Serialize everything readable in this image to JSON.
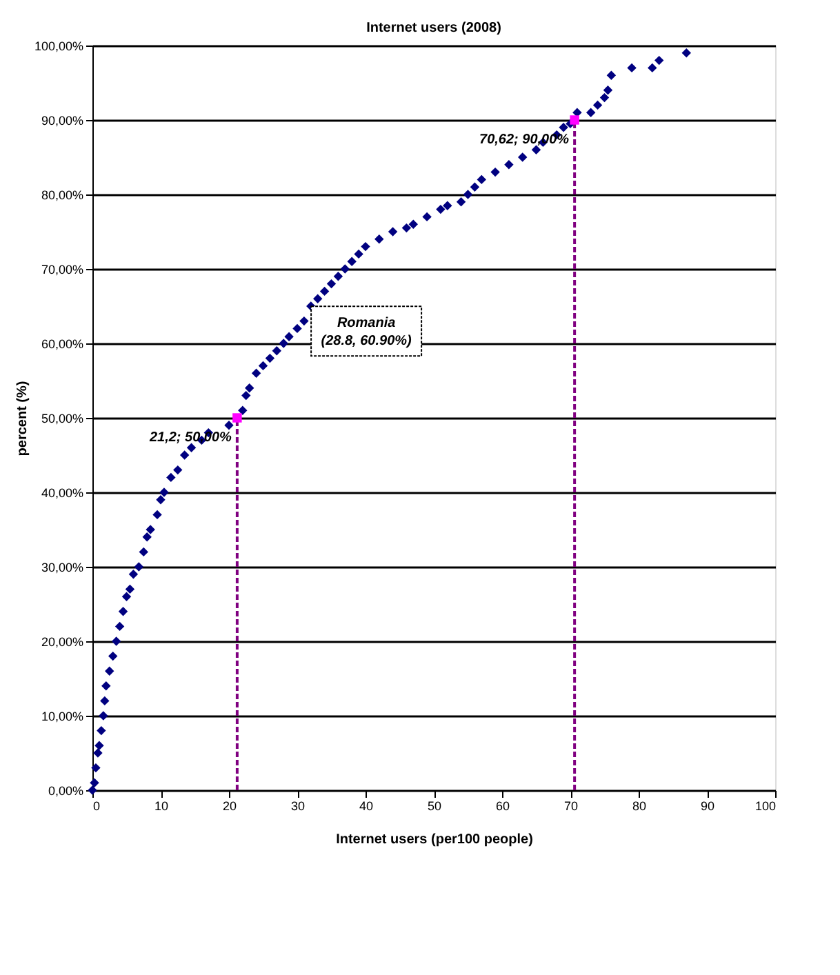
{
  "chart_data": {
    "type": "scatter",
    "title": "Internet users (2008)",
    "xlabel": "Internet users (per100 people)",
    "ylabel": "percent (%)",
    "xlim": [
      0,
      100
    ],
    "xticks": [
      0,
      10,
      20,
      30,
      40,
      50,
      60,
      70,
      80,
      90,
      100
    ],
    "ylim": [
      0,
      100
    ],
    "yticks": [
      {
        "value": 0,
        "label": "0,00%"
      },
      {
        "value": 10,
        "label": "10,00%"
      },
      {
        "value": 20,
        "label": "20,00%"
      },
      {
        "value": 30,
        "label": "30,00%"
      },
      {
        "value": 40,
        "label": "40,00%"
      },
      {
        "value": 50,
        "label": "50,00%"
      },
      {
        "value": 60,
        "label": "60,00%"
      },
      {
        "value": 70,
        "label": "70,00%"
      },
      {
        "value": 80,
        "label": "80,00%"
      },
      {
        "value": 90,
        "label": "90,00%"
      },
      {
        "value": 100,
        "label": "100,00%"
      }
    ],
    "grid": "y",
    "annotations": [
      {
        "text": "Romania\n(28.8, 60.90%)",
        "x": 28.8,
        "y": 60.9
      }
    ],
    "series": [
      {
        "marker": "diamond",
        "color": "#000080",
        "x": [
          0,
          0.3,
          0.5,
          0.8,
          1,
          1.3,
          1.6,
          1.8,
          2,
          2.5,
          3,
          3.5,
          4,
          4.5,
          5,
          5.5,
          6,
          6.8,
          7.5,
          8,
          8.5,
          9.5,
          10,
          10.5,
          11.5,
          12.5,
          13.5,
          14.5,
          16,
          17,
          20,
          22,
          22.5,
          23,
          24,
          25,
          26,
          27,
          28,
          28.8,
          30,
          31,
          32,
          33,
          34,
          35,
          36,
          37,
          38,
          39,
          40,
          42,
          44,
          46,
          47,
          49,
          51,
          52,
          54,
          55,
          56,
          57,
          59,
          61,
          63,
          65,
          66,
          68,
          69,
          70,
          71,
          73,
          74,
          75,
          75.5,
          76,
          79,
          82,
          83,
          87
        ],
        "values": [
          0,
          1,
          3,
          5,
          6,
          8,
          10,
          12,
          14,
          16,
          18,
          20,
          22,
          24,
          26,
          27,
          29,
          30,
          32,
          34,
          35,
          37,
          39,
          40,
          42,
          43,
          45,
          46,
          47,
          48,
          49,
          51,
          53,
          54,
          56,
          57,
          58,
          59,
          60,
          60.9,
          62,
          63,
          65,
          66,
          67,
          68,
          69,
          70,
          71,
          72,
          73,
          74,
          75,
          75.5,
          76,
          77,
          78,
          78.5,
          79,
          80,
          81,
          82,
          83,
          84,
          85,
          86,
          87,
          88,
          89,
          89.5,
          91,
          91,
          92,
          93,
          94,
          96,
          97,
          97,
          98,
          99
        ]
      },
      {
        "type": "line",
        "line_style": "dashed",
        "color": "#800080",
        "x": [
          21.2,
          21.2
        ],
        "values": [
          0,
          50
        ]
      },
      {
        "type": "line",
        "line_style": "dashed",
        "color": "#800080",
        "x": [
          70.62,
          70.62
        ],
        "values": [
          0,
          90
        ]
      },
      {
        "marker": "square",
        "color": "#ff00ff",
        "x": [
          21.2,
          70.62
        ],
        "values": [
          50,
          90
        ],
        "value_labels": [
          "21,2; 50,00%",
          "70,62; 90,00%"
        ]
      }
    ]
  }
}
